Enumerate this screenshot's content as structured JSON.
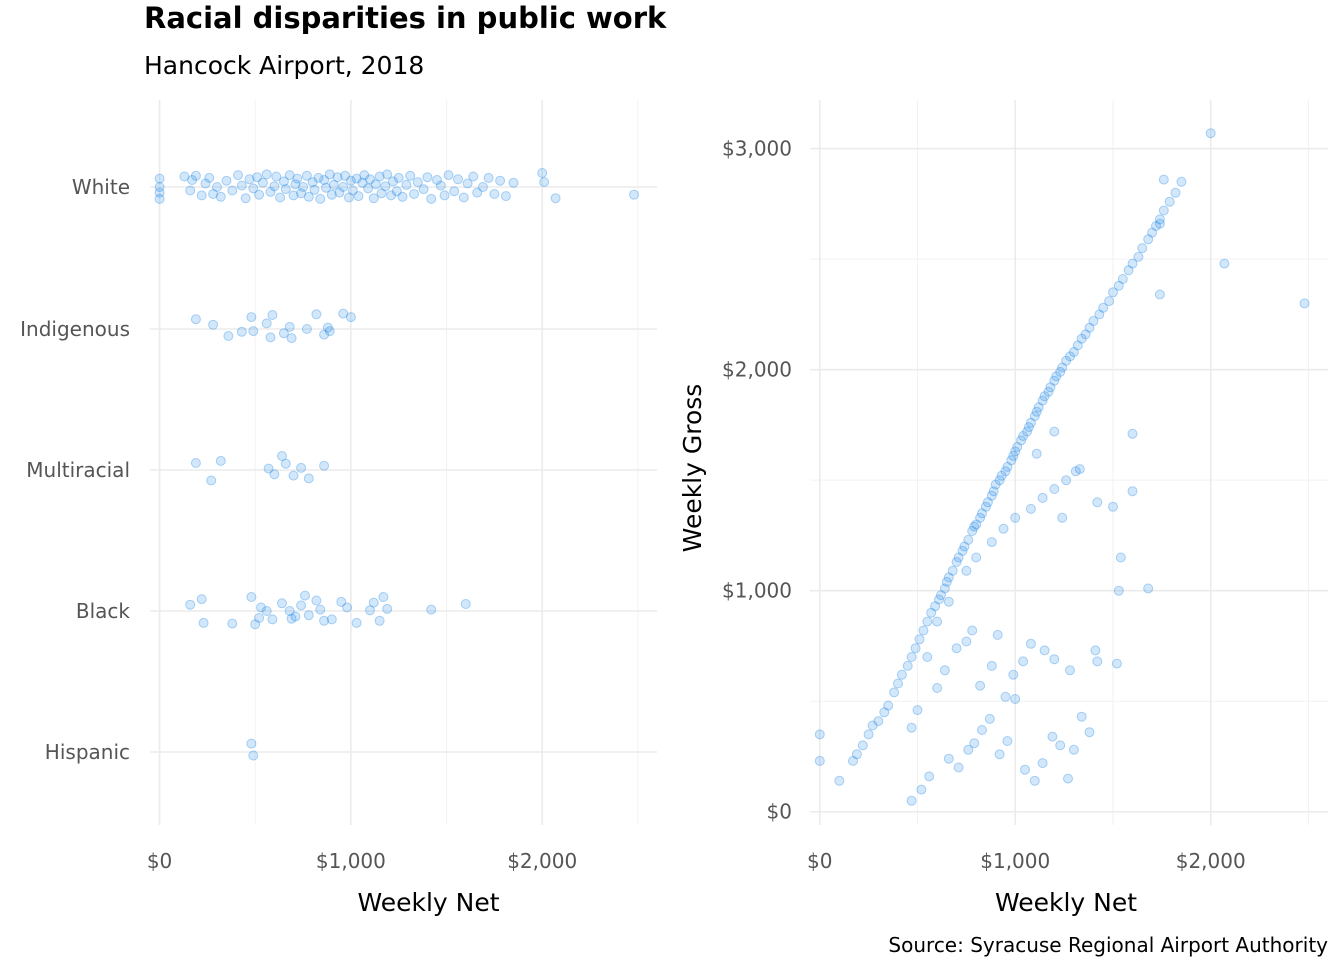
{
  "title": "Racial disparities in public work",
  "subtitle": "Hancock Airport, 2018",
  "caption": "Source: Syracuse Regional Airport Authority",
  "colors": {
    "point": "#1e88e5",
    "grid": "#ebebeb",
    "tick_text": "#555555"
  },
  "chart_data": [
    {
      "type": "scatter",
      "subtype": "jittered strip",
      "title": "",
      "xlabel": "Weekly Net",
      "ylabel": "",
      "xlim": [
        -50,
        2600
      ],
      "xticks": [
        0,
        1000,
        2000
      ],
      "xtick_labels": [
        "$0",
        "$1,000",
        "$2,000"
      ],
      "categories": [
        "White",
        "Indigenous",
        "Multiracial",
        "Black",
        "Hispanic"
      ],
      "grid": true,
      "series": [
        {
          "category": "White",
          "x": [
            0,
            0,
            0,
            0,
            130,
            160,
            170,
            190,
            220,
            240,
            260,
            280,
            300,
            320,
            350,
            380,
            410,
            430,
            450,
            470,
            490,
            510,
            520,
            540,
            560,
            580,
            600,
            610,
            630,
            650,
            660,
            680,
            700,
            710,
            720,
            740,
            750,
            770,
            780,
            800,
            810,
            830,
            840,
            860,
            870,
            890,
            900,
            910,
            930,
            940,
            960,
            970,
            990,
            1000,
            1010,
            1030,
            1040,
            1060,
            1070,
            1090,
            1100,
            1120,
            1130,
            1150,
            1160,
            1180,
            1190,
            1210,
            1220,
            1240,
            1250,
            1270,
            1290,
            1310,
            1330,
            1350,
            1380,
            1400,
            1420,
            1450,
            1470,
            1490,
            1510,
            1540,
            1560,
            1590,
            1610,
            1640,
            1660,
            1690,
            1720,
            1750,
            1780,
            1810,
            1850,
            2000,
            2010,
            2070,
            2480
          ],
          "y": [
            0.12,
            -0.08,
            0.0,
            -0.17,
            0.15,
            -0.05,
            0.1,
            0.16,
            -0.12,
            0.05,
            0.13,
            -0.1,
            0.0,
            -0.14,
            0.09,
            -0.05,
            0.17,
            0.02,
            -0.16,
            0.11,
            -0.02,
            0.14,
            -0.11,
            0.06,
            0.18,
            -0.07,
            0.01,
            0.15,
            -0.15,
            0.08,
            -0.03,
            0.17,
            -0.12,
            0.04,
            0.12,
            -0.09,
            0.0,
            0.16,
            -0.14,
            0.07,
            -0.04,
            0.13,
            -0.17,
            0.1,
            -0.01,
            0.18,
            -0.11,
            0.03,
            0.14,
            -0.08,
            0.0,
            0.16,
            -0.15,
            0.09,
            -0.05,
            0.12,
            -0.13,
            0.06,
            0.17,
            -0.02,
            0.11,
            -0.16,
            0.04,
            0.15,
            -0.09,
            0.01,
            0.18,
            -0.12,
            0.08,
            -0.06,
            0.13,
            -0.14,
            0.03,
            0.16,
            -0.1,
            0.07,
            -0.03,
            0.14,
            -0.17,
            0.1,
            0.02,
            -0.12,
            0.17,
            -0.06,
            0.11,
            -0.15,
            0.05,
            0.15,
            -0.08,
            0.0,
            0.13,
            -0.1,
            0.09,
            -0.13,
            0.06,
            0.2,
            0.07,
            -0.16,
            -0.11
          ]
        },
        {
          "category": "Indigenous",
          "x": [
            190,
            280,
            360,
            430,
            480,
            490,
            560,
            580,
            590,
            650,
            680,
            690,
            770,
            820,
            860,
            880,
            890,
            960,
            1000
          ],
          "y": [
            0.14,
            0.06,
            -0.1,
            -0.04,
            0.17,
            -0.03,
            0.08,
            -0.12,
            0.2,
            -0.06,
            0.03,
            -0.13,
            0.0,
            0.21,
            -0.08,
            0.02,
            -0.03,
            0.22,
            0.17
          ]
        },
        {
          "category": "Multiracial",
          "x": [
            190,
            270,
            320,
            570,
            600,
            640,
            660,
            700,
            740,
            780,
            860
          ],
          "y": [
            0.1,
            -0.15,
            0.13,
            0.02,
            -0.06,
            0.2,
            0.09,
            -0.08,
            0.03,
            -0.12,
            0.06
          ]
        },
        {
          "category": "Black",
          "x": [
            160,
            220,
            230,
            380,
            480,
            500,
            520,
            530,
            560,
            590,
            640,
            680,
            690,
            710,
            740,
            760,
            780,
            820,
            840,
            860,
            900,
            950,
            980,
            1030,
            1100,
            1120,
            1150,
            1170,
            1190,
            1420,
            1600
          ],
          "y": [
            0.09,
            0.17,
            -0.17,
            -0.18,
            0.2,
            -0.19,
            -0.1,
            0.05,
            0.0,
            -0.12,
            0.11,
            0.0,
            -0.11,
            -0.08,
            0.08,
            0.22,
            -0.06,
            0.15,
            0.02,
            -0.14,
            -0.12,
            0.13,
            0.05,
            -0.17,
            0.01,
            0.12,
            -0.14,
            0.2,
            0.03,
            0.02,
            0.1
          ]
        },
        {
          "category": "Hispanic",
          "x": [
            480,
            490
          ],
          "y": [
            0.12,
            -0.05
          ]
        }
      ]
    },
    {
      "type": "scatter",
      "title": "",
      "xlabel": "Weekly Net",
      "ylabel": "Weekly Gross",
      "xlim": [
        -50,
        2600
      ],
      "ylim": [
        -60,
        3220
      ],
      "xticks": [
        0,
        1000,
        2000
      ],
      "xtick_labels": [
        "$0",
        "$1,000",
        "$2,000"
      ],
      "yticks": [
        0,
        1000,
        2000,
        3000
      ],
      "ytick_labels": [
        "$0",
        "$1,000",
        "$2,000",
        "$3,000"
      ],
      "grid": true,
      "series": [
        {
          "name": "",
          "x": [
            0,
            0,
            100,
            170,
            190,
            220,
            250,
            270,
            300,
            330,
            350,
            380,
            400,
            420,
            450,
            470,
            490,
            510,
            530,
            550,
            570,
            590,
            610,
            620,
            640,
            650,
            660,
            680,
            700,
            710,
            730,
            740,
            760,
            780,
            790,
            800,
            820,
            830,
            850,
            860,
            880,
            890,
            900,
            920,
            930,
            950,
            960,
            980,
            990,
            1000,
            1010,
            1030,
            1040,
            1060,
            1070,
            1080,
            1100,
            1110,
            1120,
            1140,
            1150,
            1170,
            1180,
            1200,
            1210,
            1230,
            1240,
            1260,
            1280,
            1300,
            1320,
            1340,
            1360,
            1380,
            1400,
            1430,
            1450,
            1480,
            1500,
            1530,
            1550,
            1580,
            1600,
            1630,
            1650,
            1680,
            1700,
            1720,
            1740,
            1760,
            1790,
            1820,
            1850,
            2000,
            2070,
            2480,
            1110,
            1200,
            1600,
            1420,
            1240,
            1330,
            1500,
            1740,
            1760,
            470,
            520,
            560,
            660,
            710,
            760,
            790,
            830,
            870,
            920,
            960,
            1000,
            1050,
            1100,
            1140,
            1190,
            1230,
            1270,
            1300,
            1340,
            1380,
            1420,
            1540,
            1680,
            1740,
            470,
            500,
            550,
            600,
            640,
            700,
            750,
            780,
            820,
            880,
            910,
            950,
            990,
            1040,
            1080,
            1150,
            1200,
            1280,
            1410,
            1530,
            1520,
            1600,
            600,
            660,
            750,
            800,
            880,
            940,
            1000,
            1080,
            1140,
            1200,
            1260,
            1310
          ],
          "y": [
            350,
            230,
            140,
            230,
            260,
            300,
            350,
            390,
            410,
            450,
            480,
            540,
            580,
            620,
            660,
            700,
            740,
            780,
            820,
            860,
            900,
            930,
            960,
            980,
            1010,
            1040,
            1060,
            1090,
            1130,
            1150,
            1180,
            1200,
            1230,
            1270,
            1290,
            1300,
            1330,
            1350,
            1380,
            1400,
            1430,
            1450,
            1480,
            1500,
            1520,
            1540,
            1560,
            1590,
            1610,
            1630,
            1650,
            1680,
            1700,
            1720,
            1740,
            1760,
            1790,
            1810,
            1830,
            1860,
            1880,
            1900,
            1920,
            1950,
            1970,
            1990,
            2010,
            2040,
            2060,
            2080,
            2110,
            2140,
            2160,
            2190,
            2220,
            2250,
            2280,
            2310,
            2350,
            2380,
            2410,
            2450,
            2480,
            2510,
            2550,
            2590,
            2620,
            2650,
            2680,
            2720,
            2760,
            2800,
            2850,
            3070,
            2480,
            2300,
            1620,
            1720,
            1450,
            1400,
            1330,
            1550,
            1380,
            2340,
            2860,
            50,
            100,
            160,
            240,
            200,
            280,
            310,
            370,
            420,
            260,
            320,
            510,
            190,
            140,
            220,
            340,
            300,
            150,
            280,
            430,
            360,
            680,
            1150,
            1010,
            2660,
            380,
            460,
            700,
            560,
            640,
            740,
            770,
            820,
            570,
            660,
            800,
            520,
            620,
            680,
            760,
            730,
            690,
            640,
            730,
            1000,
            670,
            1710,
            860,
            950,
            1090,
            1150,
            1220,
            1280,
            1330,
            1370,
            1420,
            1460,
            1500,
            1540
          ]
        }
      ]
    }
  ]
}
